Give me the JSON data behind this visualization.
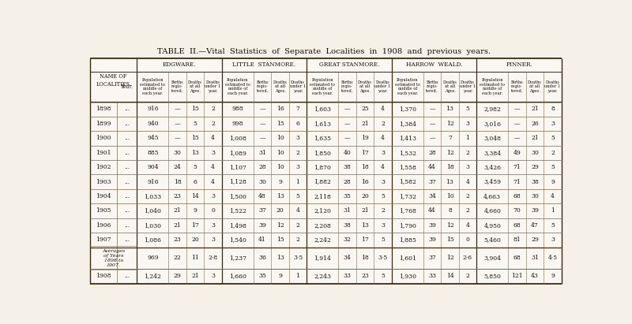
{
  "title": "TABLE  II.—Vital  Statistics  of  Separate  Localities  in  1908  and  previous  years.",
  "bg_color": "#f5f0e8",
  "table_bg": "#faf7f2",
  "localities": [
    "EDGWARE.",
    "LITTLE  STANMORE.",
    "GREAT STANMORE.",
    "HARROW  WEALD.",
    "PINNER."
  ],
  "sub_col_labels": [
    "Population\nestimated to\nmiddle of\neach year.",
    "Births\nregis-\ntered.",
    "Deaths\nat all\nAges.",
    "Deaths\nunder 1\nyear."
  ],
  "rows": [
    [
      "1898",
      "...",
      "916",
      "—",
      "15",
      "2",
      "988",
      "—",
      "16",
      "7",
      "1,603",
      "—",
      "25",
      "4",
      "1,370",
      "—",
      "13",
      "5",
      "2,982",
      "—",
      "21",
      "8"
    ],
    [
      "1899",
      "...",
      "940",
      "—",
      "5",
      "2",
      "998",
      "—",
      "15",
      "6",
      "1,613",
      "—",
      "21",
      "2",
      "1,384",
      "—",
      "12",
      "3",
      "3,016",
      "—",
      "26",
      "3"
    ],
    [
      "1900",
      "...",
      "945",
      "—",
      "15",
      "4",
      "1,008",
      "—",
      "10",
      "3",
      "1,635",
      "—",
      "19",
      "4",
      "1,413",
      "—",
      "7",
      "1",
      "3,048",
      "—",
      "21",
      "5"
    ],
    [
      "1901",
      "...",
      "885",
      "30",
      "13",
      "3",
      "1,089",
      "31",
      "10",
      "2",
      "1,850",
      "40",
      "17",
      "3",
      "1,532",
      "28",
      "12",
      "2",
      "3,384",
      "49",
      "30",
      "2"
    ],
    [
      "1902",
      "...",
      "904",
      "24",
      "5",
      "4",
      "1,107",
      "28",
      "10",
      "3",
      "1,870",
      "38",
      "18",
      "4",
      "1,558",
      "44",
      "18",
      "3",
      "3,426",
      "71",
      "29",
      "5"
    ],
    [
      "1903",
      "...",
      "916",
      "18",
      "6",
      "4",
      "1,128",
      "30",
      "9",
      "1",
      "1,882",
      "28",
      "16",
      "3",
      "1,582",
      "37",
      "13",
      "4",
      "3,459",
      "71",
      "38",
      "9"
    ],
    [
      "1904",
      "...",
      "1,033",
      "23",
      "14",
      "3",
      "1,500",
      "48",
      "13",
      "5",
      "2,118",
      "35",
      "20",
      "5",
      "1,732",
      "34",
      "10",
      "2",
      "4,663",
      "68",
      "30",
      "4"
    ],
    [
      "1905",
      "...",
      "1,040",
      "21",
      "9",
      "0",
      "1,522",
      "37",
      "20",
      "4",
      "2,120",
      "31",
      "21",
      "2",
      "1,768",
      "44",
      "8",
      "2",
      "4,660",
      "70",
      "39",
      "1"
    ],
    [
      "1906",
      "...",
      "1,030",
      "21",
      "17",
      "3",
      "1,498",
      "39",
      "12",
      "2",
      "2,208",
      "38",
      "13",
      "3",
      "1,790",
      "39",
      "12",
      "4",
      "4,950",
      "68",
      "47",
      "5"
    ],
    [
      "1907",
      "...",
      "1,086",
      "23",
      "20",
      "3",
      "1,540",
      "41",
      "15",
      "2",
      "2,242",
      "32",
      "17",
      "5",
      "1,885",
      "39",
      "15",
      "0",
      "5,460",
      "81",
      "29",
      "3"
    ]
  ],
  "avg_row": [
    "969",
    "22",
    "11",
    "2·8",
    "1,237",
    "36",
    "13",
    "3·5",
    "1,914",
    "34",
    "18",
    "3·5",
    "1,601",
    "37",
    "12",
    "2·6",
    "3,904",
    "68",
    "31",
    "4·5"
  ],
  "row_1908": [
    "1908",
    "...",
    "1,242",
    "29",
    "21",
    "3",
    "1,660",
    "35",
    "9",
    "1",
    "2,243",
    "33",
    "23",
    "5",
    "1,930",
    "33",
    "14",
    "2",
    "5,850",
    "121",
    "43",
    "9"
  ],
  "text_color": "#1a1008",
  "line_color": "#7a6a50",
  "thick_line_color": "#3a2a10"
}
